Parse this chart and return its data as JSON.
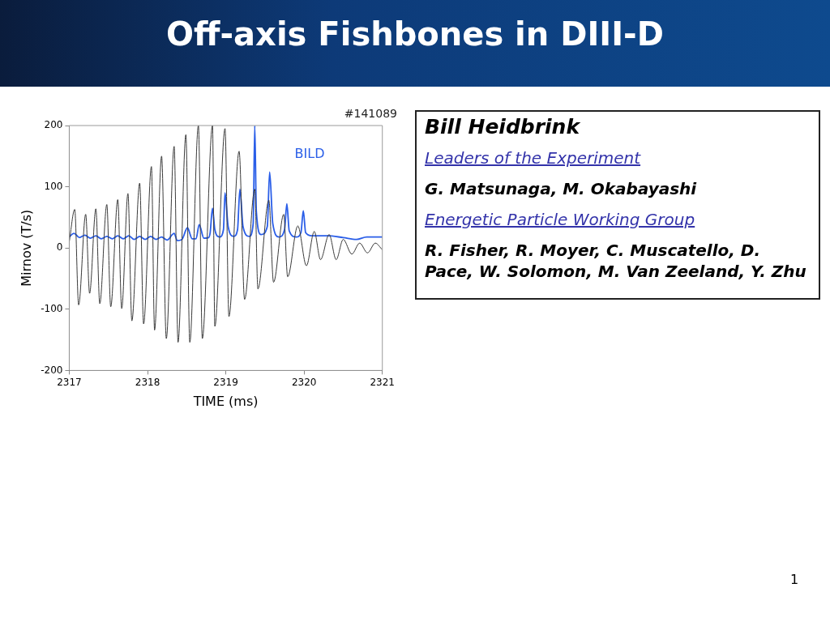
{
  "chart_data": [
    {
      "type": "line",
      "title": "Off-axis Fishbones in DIII-D",
      "xlabel": "TIME (ms)",
      "ylabel": "Mirnov (T/s)",
      "annotations": [
        "#141089"
      ],
      "xlim": [
        2317,
        2321
      ],
      "xticks": [
        2317,
        2318,
        2319,
        2320,
        2321
      ],
      "ylim": [
        -200,
        200
      ],
      "yticks": [
        -200,
        -100,
        0,
        100,
        200
      ],
      "grid": false,
      "legend": false,
      "marker": "none",
      "line_style": "solid",
      "series": [
        {
          "color": "#3a3a3a",
          "x": [
            2317.0,
            2317.07,
            2317.12,
            2317.21,
            2317.26,
            2317.34,
            2317.39,
            2317.48,
            2317.53,
            2317.62,
            2317.67,
            2317.75,
            2317.8,
            2317.9,
            2317.95,
            2318.05,
            2318.09,
            2318.18,
            2318.24,
            2318.34,
            2318.39,
            2318.49,
            2318.54,
            2318.65,
            2318.7,
            2318.83,
            2318.86,
            2318.99,
            2319.04,
            2319.17,
            2319.24,
            2319.37,
            2319.41,
            2319.55,
            2319.61,
            2319.74,
            2319.79,
            2319.92,
            2320.03,
            2320.13,
            2320.21,
            2320.32,
            2320.41,
            2320.5,
            2320.61,
            2320.71,
            2320.81,
            2320.91,
            2321.0
          ],
          "values": [
            10,
            63,
            -93,
            55,
            -74,
            64,
            -91,
            71,
            -96,
            79,
            -99,
            89,
            -119,
            106,
            -124,
            133,
            -134,
            150,
            -148,
            166,
            -154,
            185,
            -154,
            200,
            -148,
            200,
            -128,
            195,
            -112,
            158,
            -84,
            96,
            -67,
            78,
            -56,
            55,
            -47,
            36,
            -29,
            27,
            -19,
            22,
            -19,
            14,
            -10,
            8,
            -8,
            8,
            -3
          ]
        },
        {
          "name": "BILD",
          "color": "#2a5ee8",
          "x": [
            2317.0,
            2317.06,
            2317.13,
            2317.2,
            2317.27,
            2317.34,
            2317.41,
            2317.48,
            2317.55,
            2317.62,
            2317.69,
            2317.76,
            2317.83,
            2317.9,
            2317.97,
            2318.04,
            2318.11,
            2318.18,
            2318.25,
            2318.34,
            2318.38,
            2318.44,
            2318.51,
            2318.57,
            2318.62,
            2318.66,
            2318.72,
            2318.78,
            2318.8,
            2318.83,
            2318.86,
            2318.92,
            2318.97,
            2318.99,
            2319.03,
            2319.1,
            2319.15,
            2319.18,
            2319.22,
            2319.3,
            2319.35,
            2319.37,
            2319.39,
            2319.45,
            2319.53,
            2319.56,
            2319.6,
            2319.68,
            2319.75,
            2319.78,
            2319.81,
            2319.9,
            2319.96,
            2319.99,
            2320.02,
            2320.1,
            2320.3,
            2320.5,
            2320.67,
            2320.8,
            2321.0
          ],
          "values": [
            18,
            24,
            17,
            21,
            16,
            20,
            15,
            19,
            15,
            20,
            15,
            20,
            14,
            19,
            14,
            19,
            14,
            18,
            13,
            24,
            12,
            14,
            33,
            15,
            15,
            38,
            16,
            17,
            25,
            65,
            30,
            18,
            30,
            90,
            35,
            19,
            30,
            96,
            35,
            19,
            40,
            200,
            60,
            22,
            35,
            124,
            40,
            18,
            30,
            72,
            28,
            18,
            25,
            61,
            25,
            20,
            20,
            17,
            14,
            18,
            18
          ]
        }
      ]
    },
    {
      "type": "other",
      "title": "Bill Heidbrink",
      "annotations": [
        "Leaders of the Experiment",
        "G. Matsunaga, M. Okabayashi",
        "Energetic Particle Working Group",
        "R. Fisher, R. Moyer, C. Muscatello, D. Pace, W. Solomon, M. Van Zeeland, Y. Zhu",
        "1"
      ]
    }
  ]
}
